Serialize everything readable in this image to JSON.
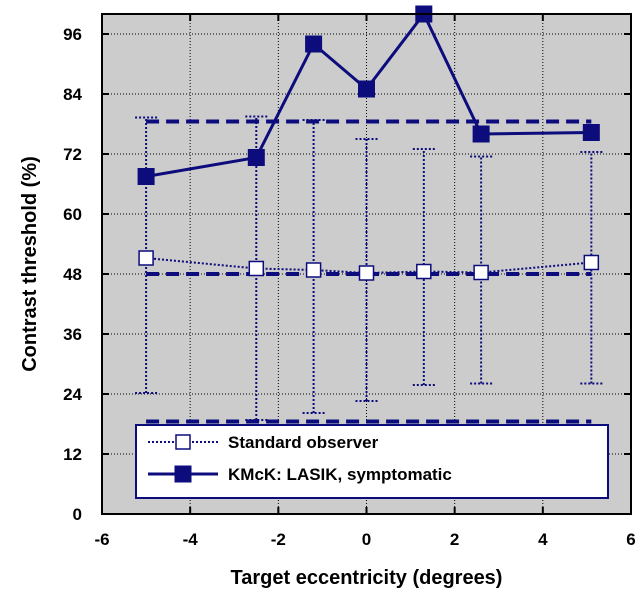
{
  "chart_data": {
    "type": "line",
    "xlabel": "Target eccentricity (degrees)",
    "ylabel": "Contrast threshold (%)",
    "xlim": [
      -6,
      6
    ],
    "ylim": [
      0,
      100
    ],
    "x_ticks": [
      -6,
      -4,
      -2,
      0,
      2,
      4,
      6
    ],
    "y_ticks": [
      0,
      12,
      24,
      36,
      48,
      60,
      72,
      84,
      96
    ],
    "grid": true,
    "legend_position": "bottom-right",
    "colors": {
      "plot_bg": "#cccccc",
      "series": "#0c0c7c"
    },
    "series": [
      {
        "name": "Standard observer",
        "style": "dotted line, open square markers, vertical error bars",
        "x": [
          -5,
          -2.5,
          -1.2,
          0,
          1.3,
          2.6,
          5.1
        ],
        "values": [
          51.2,
          49.1,
          48.8,
          48.2,
          48.5,
          48.3,
          50.3
        ],
        "error_low": [
          24.2,
          18.8,
          20.2,
          22.6,
          25.8,
          26.1,
          26.1
        ],
        "error_high": [
          79.3,
          79.5,
          78.8,
          75.0,
          73.0,
          71.5,
          72.4
        ]
      },
      {
        "name": "KMcK: LASIK, symptomatic",
        "style": "solid line, filled square markers",
        "x": [
          -5,
          -2.5,
          -1.2,
          0,
          1.3,
          2.6,
          5.1
        ],
        "values": [
          67.5,
          71.3,
          94.0,
          85.0,
          100.0,
          76.0,
          76.3
        ]
      }
    ],
    "reference_lines": [
      {
        "y": 78.5,
        "x_range": [
          -5,
          5.1
        ]
      },
      {
        "y": 48.0,
        "x_range": [
          -5,
          5.1
        ]
      },
      {
        "y": 18.5,
        "x_range": [
          -5,
          5.1
        ]
      }
    ]
  }
}
